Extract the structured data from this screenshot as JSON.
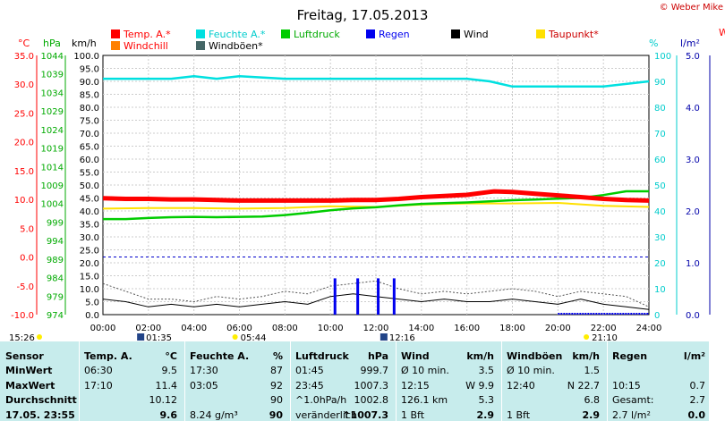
{
  "title": "Freitag, 17.05.2013",
  "copyright": "© Weber Mike",
  "colors": {
    "temp": "#ff0000",
    "hum": "#00e0e0",
    "press": "#00cc00",
    "rain": "#0000ee",
    "wind": "#000000",
    "dew": "#ffe000",
    "windchill": "#ff8000",
    "gust": "#446666",
    "axis_c": "#ff0000",
    "axis_hpa": "#00aa00",
    "axis_pct": "#00cccc",
    "axis_lm2": "#0000aa",
    "table_bg": "#c7ecec",
    "plot_border": "#000000"
  },
  "legend": {
    "temp": "Temp. A.*",
    "hum": "Feuchte A.*",
    "press": "Luftdruck",
    "rain": "Regen",
    "wind": "Wind",
    "dew": "Taupunkt*",
    "windchill": "Windchill",
    "gust": "Windböen*"
  },
  "axis_units": {
    "c": "°C",
    "hpa": "hPa",
    "kmh": "km/h",
    "pct": "%",
    "lm2": "l/m²"
  },
  "chart_data": {
    "type": "line",
    "x_ticks": [
      "00:00",
      "02:00",
      "04:00",
      "06:00",
      "08:00",
      "10:00",
      "12:00",
      "14:00",
      "16:00",
      "18:00",
      "20:00",
      "22:00",
      "24:00"
    ],
    "axes": {
      "celsius": {
        "min": -10,
        "max": 35,
        "ticks": [
          "35.0",
          "30.0",
          "25.0",
          "20.0",
          "15.0",
          "10.0",
          "5.0",
          "0.0",
          "-5.0",
          "-10.0"
        ]
      },
      "hpa": {
        "min": 974,
        "max": 1044,
        "ticks": [
          "1044",
          "1039",
          "1034",
          "1029",
          "1024",
          "1019",
          "1014",
          "1009",
          "1004",
          "999",
          "994",
          "989",
          "984",
          "979",
          "974"
        ]
      },
      "kmh": {
        "min": 0,
        "max": 100,
        "ticks": [
          "100.0",
          "95.0",
          "90.0",
          "85.0",
          "80.0",
          "75.0",
          "70.0",
          "65.0",
          "60.0",
          "55.0",
          "50.0",
          "45.0",
          "40.0",
          "35.0",
          "30.0",
          "25.0",
          "20.0",
          "15.0",
          "10.0",
          "5.0",
          "0.0"
        ]
      },
      "pct": {
        "min": 0,
        "max": 100,
        "ticks": [
          "100",
          "90",
          "80",
          "70",
          "60",
          "50",
          "40",
          "30",
          "20",
          "10",
          "0"
        ]
      },
      "lm2": {
        "min": 0,
        "max": 5,
        "ticks": [
          "5.0",
          "4.0",
          "3.0",
          "2.0",
          "1.0",
          "0.0"
        ]
      }
    },
    "series": [
      {
        "name": "Temp. A.*",
        "unit": "°C",
        "x": [
          0,
          1,
          2,
          3,
          4,
          5,
          6,
          7,
          8,
          9,
          10,
          11,
          12,
          13,
          14,
          15,
          16,
          17,
          17.2,
          18,
          19,
          20,
          21,
          22,
          23,
          24
        ],
        "values": [
          10.2,
          10.1,
          10.1,
          10.0,
          10.0,
          9.9,
          9.8,
          9.8,
          9.8,
          9.8,
          9.8,
          9.9,
          9.9,
          10.1,
          10.4,
          10.6,
          10.8,
          11.3,
          11.4,
          11.3,
          11.0,
          10.7,
          10.4,
          10.1,
          9.9,
          9.8
        ]
      },
      {
        "name": "Feuchte A.*",
        "unit": "%",
        "x": [
          0,
          2,
          3,
          4,
          5,
          6,
          8,
          10,
          12,
          14,
          16,
          17,
          18,
          19,
          20,
          21,
          22,
          23,
          24
        ],
        "values": [
          91,
          91,
          91,
          92,
          91,
          92,
          91,
          91,
          91,
          91,
          91,
          90,
          88,
          88,
          88,
          88,
          88,
          89,
          90
        ]
      },
      {
        "name": "Luftdruck",
        "unit": "hPa",
        "x": [
          0,
          1,
          2,
          3,
          4,
          5,
          6,
          7,
          8,
          9,
          10,
          11,
          12,
          13,
          14,
          15,
          16,
          17,
          18,
          19,
          20,
          21,
          22,
          23,
          24
        ],
        "values": [
          999.8,
          999.8,
          1000.1,
          1000.3,
          1000.4,
          1000.3,
          1000.4,
          1000.5,
          1000.9,
          1001.5,
          1002.2,
          1002.7,
          1003.0,
          1003.5,
          1003.9,
          1004.1,
          1004.3,
          1004.6,
          1004.9,
          1005.1,
          1005.3,
          1005.5,
          1006.3,
          1007.3,
          1007.3
        ]
      },
      {
        "name": "Taupunkt*",
        "unit": "°C",
        "x": [
          0,
          2,
          4,
          6,
          8,
          10,
          12,
          14,
          16,
          18,
          20,
          22,
          24
        ],
        "values": [
          8.4,
          8.5,
          8.5,
          8.4,
          8.5,
          8.8,
          8.7,
          9.1,
          9.3,
          9.3,
          9.4,
          8.9,
          8.7
        ]
      },
      {
        "name": "Wind",
        "unit": "km/h",
        "x": [
          0,
          1,
          2,
          3,
          4,
          5,
          6,
          7,
          8,
          9,
          10,
          11,
          12,
          13,
          14,
          15,
          16,
          17,
          18,
          19,
          20,
          21,
          22,
          23,
          24
        ],
        "values": [
          6,
          5,
          3,
          4,
          3,
          4,
          3,
          4,
          5,
          4,
          7,
          8,
          7,
          6,
          5,
          6,
          5,
          5,
          6,
          5,
          4,
          6,
          4,
          3,
          2
        ]
      },
      {
        "name": "Windböen*",
        "unit": "km/h",
        "x": [
          0,
          1,
          2,
          3,
          4,
          5,
          6,
          7,
          8,
          9,
          10,
          11,
          12,
          13,
          14,
          15,
          16,
          17,
          18,
          19,
          20,
          21,
          22,
          23,
          24
        ],
        "values": [
          12,
          9,
          6,
          6,
          5,
          7,
          6,
          7,
          9,
          8,
          11,
          12,
          13,
          10,
          8,
          9,
          8,
          9,
          10,
          9,
          7,
          9,
          8,
          7,
          3
        ]
      },
      {
        "name": "Regen",
        "unit": "l/m²",
        "x": [
          10.2,
          11.2,
          12.1,
          12.8
        ],
        "values": [
          0.7,
          0.7,
          0.7,
          0.7
        ]
      }
    ],
    "markers": {
      "bottom": [
        {
          "label": "15:26",
          "x": 0
        },
        {
          "label": "01:35",
          "x": 1.58
        },
        {
          "label": "05:44",
          "x": 5.73
        },
        {
          "label": "12:16",
          "x": 12.27
        },
        {
          "label": "21:10",
          "x": 21.17
        }
      ]
    }
  },
  "table": {
    "head": {
      "sensor": "Sensor",
      "temp": "Temp. A.",
      "temp_u": "°C",
      "hum": "Feuchte A.",
      "hum_u": "%",
      "press": "Luftdruck",
      "press_u": "hPa",
      "wind": "Wind",
      "wind_u": "km/h",
      "gust": "Windböen",
      "gust_u": "km/h",
      "rain": "Regen",
      "rain_u": "l/m²"
    },
    "rows": [
      {
        "label": "MinWert",
        "temp_t": "06:30",
        "temp_v": "9.5",
        "hum_t": "17:30",
        "hum_v": "87",
        "press_t": "01:45",
        "press_v": "999.7",
        "wind_t": "Ø 10 min.",
        "wind_v": "3.5",
        "gust_t": "Ø 10 min.",
        "gust_v": "1.5",
        "rain_t": "",
        "rain_v": ""
      },
      {
        "label": "MaxWert",
        "temp_t": "17:10",
        "temp_v": "11.4",
        "hum_t": "03:05",
        "hum_v": "92",
        "press_t": "23:45",
        "press_v": "1007.3",
        "wind_t": "12:15",
        "wind_v": "W 9.9",
        "gust_t": "12:40",
        "gust_v": "N 22.7",
        "rain_t": "10:15",
        "rain_v": "0.7"
      },
      {
        "label": "Durchschnitt",
        "temp_t": "",
        "temp_v": "10.12",
        "hum_t": "",
        "hum_v": "90",
        "press_t": "^1.0hPa/h",
        "press_v": "1002.8",
        "wind_t": "126.1 km",
        "wind_v": "5.3",
        "gust_t": "",
        "gust_v": "6.8",
        "rain_t": "Gesamt:",
        "rain_v": "2.7"
      },
      {
        "label": "17.05. 23:55",
        "temp_t": "",
        "temp_v": "9.6",
        "hum_t": "8.24 g/m³",
        "hum_v": "90",
        "press_t": "veränderlich",
        "press_v": "↑1007.3",
        "wind_t": "1 Bft",
        "wind_v": "2.9",
        "gust_t": "1 Bft",
        "gust_v": "2.9",
        "rain_t": "2.7 l/m²",
        "rain_v": "0.0"
      }
    ]
  }
}
